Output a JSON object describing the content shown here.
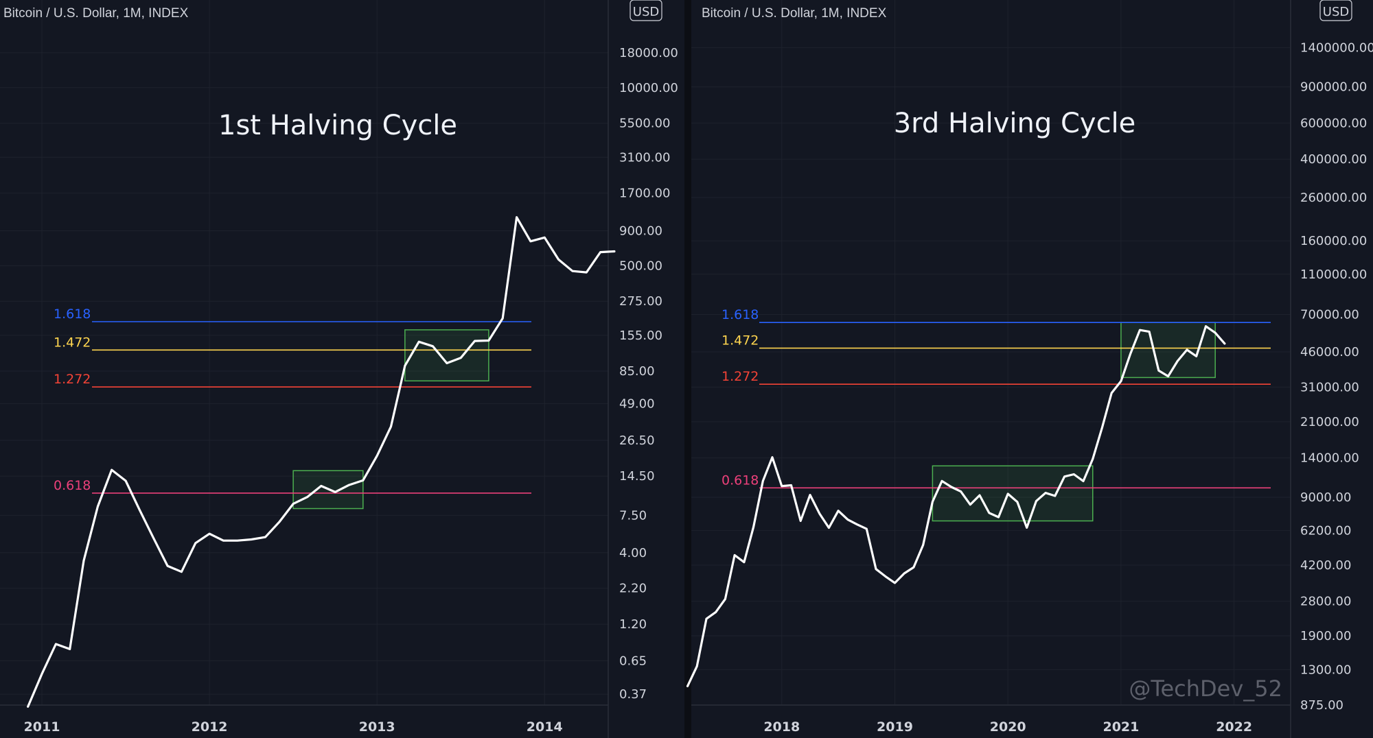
{
  "chart_data": [
    {
      "type": "line",
      "header": "Bitcoin / U.S. Dollar, 1M, INDEX",
      "title": "1st Halving Cycle",
      "currency": "USD",
      "yscale": "log",
      "ylim": [
        0.33,
        26000
      ],
      "xlim": [
        2010.75,
        2014.38
      ],
      "yticks": [
        "18000.00",
        "10000.00",
        "5500.00",
        "3100.00",
        "1700.00",
        "900.00",
        "500.00",
        "275.00",
        "155.00",
        "85.00",
        "49.00",
        "26.50",
        "14.50",
        "7.50",
        "4.00",
        "2.20",
        "1.20",
        "0.65",
        "0.37"
      ],
      "xticks": [
        "2011",
        "2012",
        "2013",
        "2014"
      ],
      "line_color": "#ffffff",
      "series": [
        {
          "values": [
            {
              "x": "2010-12",
              "y": 0.3
            },
            {
              "x": "2011-01",
              "y": 0.52
            },
            {
              "x": "2011-02",
              "y": 0.86
            },
            {
              "x": "2011-03",
              "y": 0.79
            },
            {
              "x": "2011-04",
              "y": 3.5
            },
            {
              "x": "2011-05",
              "y": 8.7
            },
            {
              "x": "2011-06",
              "y": 16.1
            },
            {
              "x": "2011-07",
              "y": 13.4
            },
            {
              "x": "2011-08",
              "y": 8.2
            },
            {
              "x": "2011-09",
              "y": 5.1
            },
            {
              "x": "2011-10",
              "y": 3.2
            },
            {
              "x": "2011-11",
              "y": 2.9
            },
            {
              "x": "2011-12",
              "y": 4.7
            },
            {
              "x": "2012-01",
              "y": 5.5
            },
            {
              "x": "2012-02",
              "y": 4.9
            },
            {
              "x": "2012-03",
              "y": 4.9
            },
            {
              "x": "2012-04",
              "y": 5.0
            },
            {
              "x": "2012-05",
              "y": 5.2
            },
            {
              "x": "2012-06",
              "y": 6.7
            },
            {
              "x": "2012-07",
              "y": 9.1
            },
            {
              "x": "2012-08",
              "y": 10.2
            },
            {
              "x": "2012-09",
              "y": 12.3
            },
            {
              "x": "2012-10",
              "y": 11.1
            },
            {
              "x": "2012-11",
              "y": 12.5
            },
            {
              "x": "2012-12",
              "y": 13.5
            },
            {
              "x": "2013-01",
              "y": 20.4
            },
            {
              "x": "2013-02",
              "y": 33.4
            },
            {
              "x": "2013-03",
              "y": 93
            },
            {
              "x": "2013-04",
              "y": 139
            },
            {
              "x": "2013-05",
              "y": 129
            },
            {
              "x": "2013-06",
              "y": 97
            },
            {
              "x": "2013-07",
              "y": 106
            },
            {
              "x": "2013-08",
              "y": 141
            },
            {
              "x": "2013-09",
              "y": 142
            },
            {
              "x": "2013-10",
              "y": 206
            },
            {
              "x": "2013-11",
              "y": 1130
            },
            {
              "x": "2013-12",
              "y": 754
            },
            {
              "x": "2014-01",
              "y": 803
            },
            {
              "x": "2014-02",
              "y": 555
            },
            {
              "x": "2014-03",
              "y": 457
            },
            {
              "x": "2014-04",
              "y": 447
            },
            {
              "x": "2014-05",
              "y": 628
            },
            {
              "x": "2014-06",
              "y": 636
            }
          ]
        }
      ],
      "fib_levels": [
        {
          "label": "1.618",
          "value": 195,
          "color": "#2962ff"
        },
        {
          "label": "1.472",
          "value": 121,
          "color": "#ffd54f"
        },
        {
          "label": "1.272",
          "value": 65,
          "color": "#f44336"
        },
        {
          "label": "0.618",
          "value": 10.9,
          "color": "#ec407a"
        }
      ],
      "boxes": [
        {
          "x0": "2012-07",
          "x1": "2012-12",
          "y0": 8.4,
          "y1": 15.9,
          "color": "#4caf50"
        },
        {
          "x0": "2013-03",
          "x1": "2013-09",
          "y0": 72,
          "y1": 170,
          "color": "#4caf50"
        }
      ]
    },
    {
      "type": "line",
      "header": "Bitcoin / U.S. Dollar, 1M, INDEX",
      "title": "3rd Halving Cycle",
      "currency": "USD",
      "yscale": "log",
      "ylim": [
        860,
        1600000
      ],
      "xlim": [
        2017.2,
        2022.5
      ],
      "yticks": [
        "1400000.00",
        "900000.00",
        "600000.00",
        "400000.00",
        "260000.00",
        "160000.00",
        "110000.00",
        "70000.00",
        "46000.00",
        "31000.00",
        "21000.00",
        "14000.00",
        "9000.00",
        "6200.00",
        "4200.00",
        "2800.00",
        "1900.00",
        "1300.00",
        "875.00"
      ],
      "xticks": [
        "2018",
        "2019",
        "2020",
        "2021",
        "2022"
      ],
      "line_color": "#ffffff",
      "watermark": "@TechDev_52",
      "series": [
        {
          "values": [
            {
              "x": "2017-03",
              "y": 1080
            },
            {
              "x": "2017-04",
              "y": 1350
            },
            {
              "x": "2017-05",
              "y": 2300
            },
            {
              "x": "2017-06",
              "y": 2480
            },
            {
              "x": "2017-07",
              "y": 2870
            },
            {
              "x": "2017-08",
              "y": 4700
            },
            {
              "x": "2017-09",
              "y": 4340
            },
            {
              "x": "2017-10",
              "y": 6450
            },
            {
              "x": "2017-11",
              "y": 10800
            },
            {
              "x": "2017-12",
              "y": 14100
            },
            {
              "x": "2018-01",
              "y": 10200
            },
            {
              "x": "2018-02",
              "y": 10300
            },
            {
              "x": "2018-03",
              "y": 6900
            },
            {
              "x": "2018-04",
              "y": 9240
            },
            {
              "x": "2018-05",
              "y": 7500
            },
            {
              "x": "2018-06",
              "y": 6390
            },
            {
              "x": "2018-07",
              "y": 7730
            },
            {
              "x": "2018-08",
              "y": 7000
            },
            {
              "x": "2018-09",
              "y": 6630
            },
            {
              "x": "2018-10",
              "y": 6310
            },
            {
              "x": "2018-11",
              "y": 4020
            },
            {
              "x": "2018-12",
              "y": 3700
            },
            {
              "x": "2019-01",
              "y": 3440
            },
            {
              "x": "2019-02",
              "y": 3830
            },
            {
              "x": "2019-03",
              "y": 4100
            },
            {
              "x": "2019-04",
              "y": 5270
            },
            {
              "x": "2019-05",
              "y": 8560
            },
            {
              "x": "2019-06",
              "y": 10800
            },
            {
              "x": "2019-07",
              "y": 10100
            },
            {
              "x": "2019-08",
              "y": 9600
            },
            {
              "x": "2019-09",
              "y": 8290
            },
            {
              "x": "2019-10",
              "y": 9200
            },
            {
              "x": "2019-11",
              "y": 7550
            },
            {
              "x": "2019-12",
              "y": 7200
            },
            {
              "x": "2020-01",
              "y": 9350
            },
            {
              "x": "2020-02",
              "y": 8540
            },
            {
              "x": "2020-03",
              "y": 6400
            },
            {
              "x": "2020-04",
              "y": 8620
            },
            {
              "x": "2020-05",
              "y": 9450
            },
            {
              "x": "2020-06",
              "y": 9140
            },
            {
              "x": "2020-07",
              "y": 11350
            },
            {
              "x": "2020-08",
              "y": 11650
            },
            {
              "x": "2020-09",
              "y": 10780
            },
            {
              "x": "2020-10",
              "y": 13800
            },
            {
              "x": "2020-11",
              "y": 19700
            },
            {
              "x": "2020-12",
              "y": 29000
            },
            {
              "x": "2021-01",
              "y": 33100
            },
            {
              "x": "2021-02",
              "y": 45100
            },
            {
              "x": "2021-03",
              "y": 58800
            },
            {
              "x": "2021-04",
              "y": 57700
            },
            {
              "x": "2021-05",
              "y": 37300
            },
            {
              "x": "2021-06",
              "y": 35000
            },
            {
              "x": "2021-07",
              "y": 41500
            },
            {
              "x": "2021-08",
              "y": 47100
            },
            {
              "x": "2021-09",
              "y": 43800
            },
            {
              "x": "2021-10",
              "y": 61300
            },
            {
              "x": "2021-11",
              "y": 57000
            },
            {
              "x": "2021-12",
              "y": 50500
            }
          ]
        }
      ],
      "fib_levels": [
        {
          "label": "1.618",
          "value": 64000,
          "color": "#2962ff"
        },
        {
          "label": "1.472",
          "value": 48000,
          "color": "#ffd54f"
        },
        {
          "label": "1.272",
          "value": 32000,
          "color": "#f44336"
        },
        {
          "label": "0.618",
          "value": 10000,
          "color": "#ec407a"
        }
      ],
      "boxes": [
        {
          "x0": "2019-05",
          "x1": "2020-10",
          "y0": 6900,
          "y1": 12800,
          "color": "#4caf50"
        },
        {
          "x0": "2021-01",
          "x1": "2021-11",
          "y0": 34500,
          "y1": 64000,
          "color": "#4caf50"
        }
      ]
    }
  ]
}
